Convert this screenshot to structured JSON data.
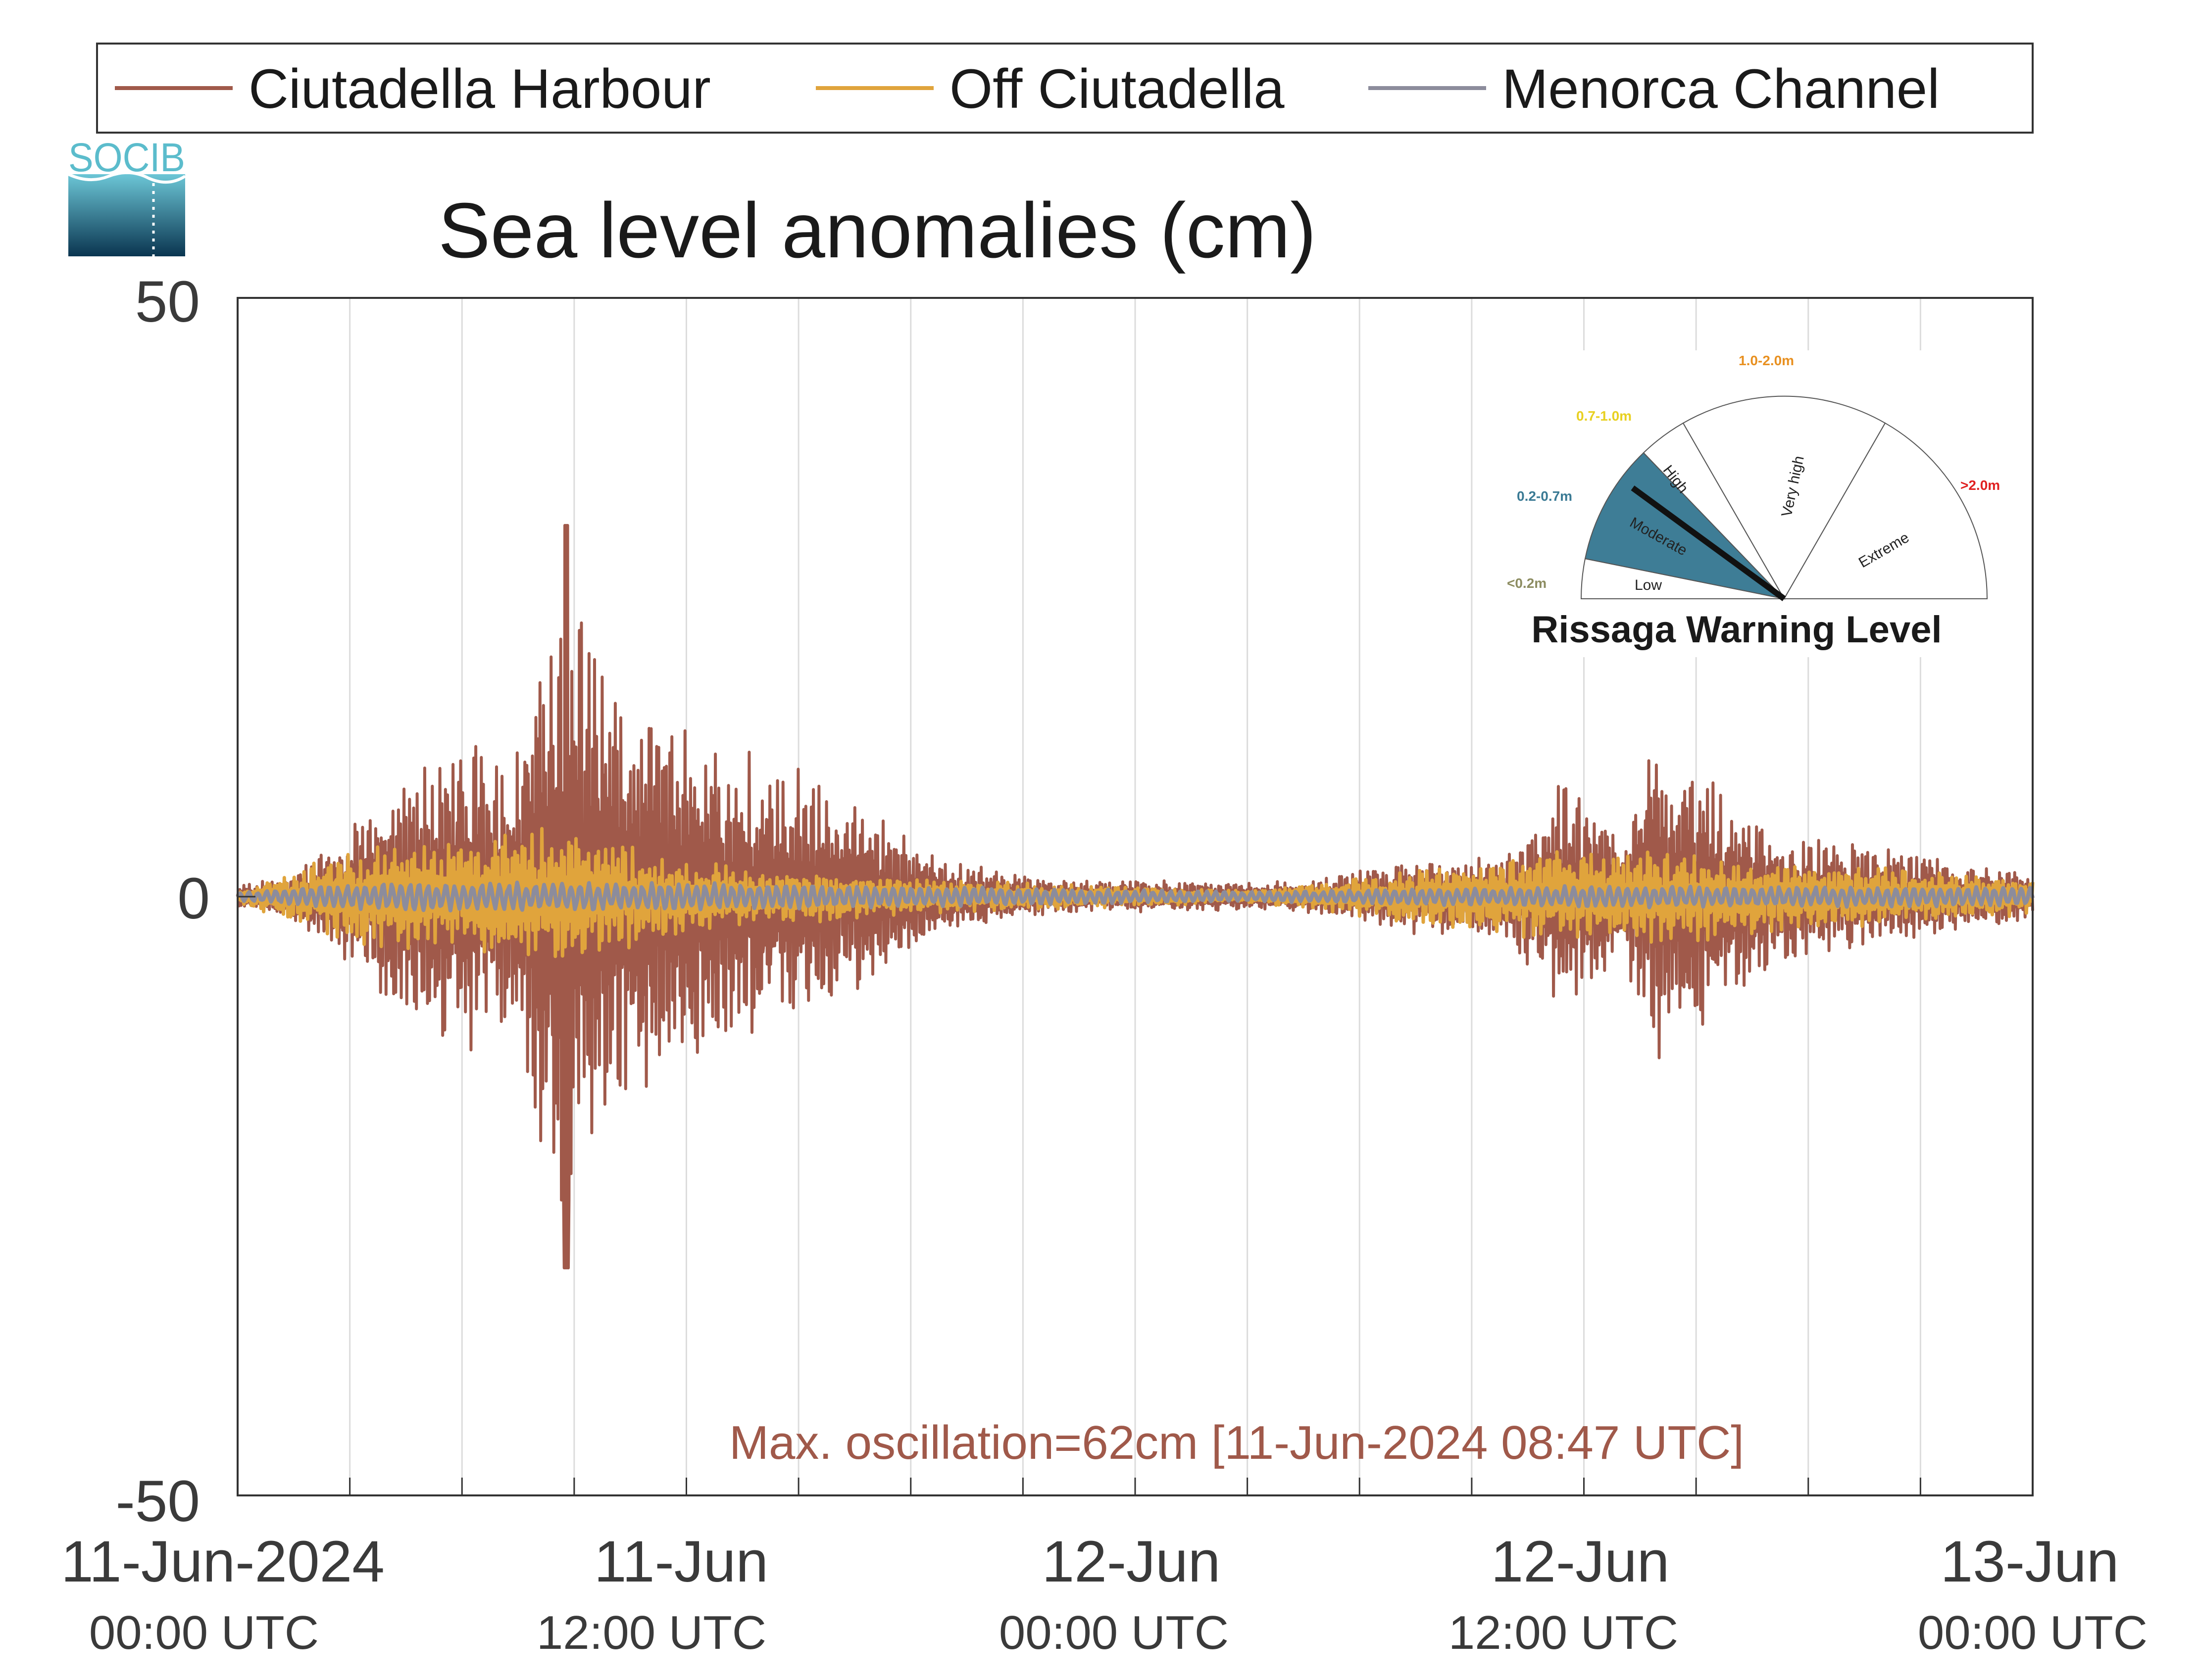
{
  "legend": {
    "items": [
      {
        "label": "Ciutadella Harbour",
        "color": "#a0594a"
      },
      {
        "label": "Off Ciutadella",
        "color": "#e0a43c"
      },
      {
        "label": "Menorca Channel",
        "color": "#8c8c9c"
      }
    ]
  },
  "logo": {
    "text": "SOCIB",
    "color": "#5bbccc"
  },
  "chart_data": {
    "type": "line",
    "title": "Sea level anomalies (cm)",
    "xlabel": "",
    "ylabel": "",
    "ylim": [
      -50,
      50
    ],
    "yticks": [
      -50,
      0,
      50
    ],
    "ytick_labels": [
      "-50",
      "0",
      "50"
    ],
    "xlim": [
      "2024-06-11T00:00",
      "2024-06-13T00:00"
    ],
    "x_grid_step_hours": 3,
    "xtick_labels": [
      {
        "date": "11-Jun-2024",
        "time": "00:00 UTC",
        "at": "2024-06-11T00:00"
      },
      {
        "date": "11-Jun",
        "time": "12:00 UTC",
        "at": "2024-06-11T12:00"
      },
      {
        "date": "12-Jun",
        "time": "00:00 UTC",
        "at": "2024-06-12T00:00"
      },
      {
        "date": "12-Jun",
        "time": "12:00 UTC",
        "at": "2024-06-12T12:00"
      },
      {
        "date": "13-Jun",
        "time": "00:00 UTC",
        "at": "2024-06-13T00:00"
      }
    ],
    "grid": "vertical",
    "legend_position": "top",
    "series": [
      {
        "name": "Ciutadella Harbour",
        "color": "#a0594a",
        "envelope": [
          {
            "t": "2024-06-11T00:00",
            "amp": 1
          },
          {
            "t": "2024-06-11T01:30",
            "amp": 2
          },
          {
            "t": "2024-06-11T03:00",
            "amp": 6
          },
          {
            "t": "2024-06-11T05:00",
            "amp": 12
          },
          {
            "t": "2024-06-11T07:30",
            "amp": 14
          },
          {
            "t": "2024-06-11T08:47",
            "amp": 31
          },
          {
            "t": "2024-06-11T10:00",
            "amp": 18
          },
          {
            "t": "2024-06-11T12:00",
            "amp": 15
          },
          {
            "t": "2024-06-11T15:00",
            "amp": 11
          },
          {
            "t": "2024-06-11T17:00",
            "amp": 7
          },
          {
            "t": "2024-06-11T19:00",
            "amp": 3
          },
          {
            "t": "2024-06-11T22:00",
            "amp": 1.5
          },
          {
            "t": "2024-06-12T03:00",
            "amp": 1.2
          },
          {
            "t": "2024-06-12T05:00",
            "amp": 1.5
          },
          {
            "t": "2024-06-12T07:00",
            "amp": 3
          },
          {
            "t": "2024-06-12T10:00",
            "amp": 4
          },
          {
            "t": "2024-06-12T11:30",
            "amp": 10
          },
          {
            "t": "2024-06-12T13:00",
            "amp": 6
          },
          {
            "t": "2024-06-12T14:00",
            "amp": 14
          },
          {
            "t": "2024-06-12T17:00",
            "amp": 6
          },
          {
            "t": "2024-06-12T20:00",
            "amp": 4
          },
          {
            "t": "2024-06-13T00:00",
            "amp": 2
          }
        ]
      },
      {
        "name": "Off Ciutadella",
        "color": "#e0a43c",
        "envelope": [
          {
            "t": "2024-06-11T00:00",
            "amp": 0.5
          },
          {
            "t": "2024-06-11T03:00",
            "amp": 4
          },
          {
            "t": "2024-06-11T08:47",
            "amp": 6
          },
          {
            "t": "2024-06-11T12:00",
            "amp": 3
          },
          {
            "t": "2024-06-11T18:00",
            "amp": 1.5
          },
          {
            "t": "2024-06-12T03:00",
            "amp": 0.5
          },
          {
            "t": "2024-06-12T11:30",
            "amp": 4
          },
          {
            "t": "2024-06-12T14:00",
            "amp": 4
          },
          {
            "t": "2024-06-13T00:00",
            "amp": 1.5
          }
        ]
      },
      {
        "name": "Menorca Channel",
        "color": "#8c8c9c",
        "envelope": [
          {
            "t": "2024-06-11T00:00",
            "amp": 0.5
          },
          {
            "t": "2024-06-11T04:00",
            "amp": 1.5
          },
          {
            "t": "2024-06-11T12:00",
            "amp": 1.5
          },
          {
            "t": "2024-06-12T03:00",
            "amp": 0.5
          },
          {
            "t": "2024-06-12T12:00",
            "amp": 1.2
          },
          {
            "t": "2024-06-13T00:00",
            "amp": 1
          }
        ]
      }
    ],
    "annotation": {
      "text": "Max. oscillation=62cm [11-Jun-2024 08:47 UTC]",
      "color": "#a0594a"
    }
  },
  "gauge": {
    "title": "Rissaga Warning Level",
    "current_level": "Moderate",
    "sectors": [
      {
        "name": "Low",
        "range": "<0.2m",
        "range_color": "#8c8c60"
      },
      {
        "name": "Moderate",
        "range": "0.2-0.7m",
        "range_color": "#3a7a94",
        "fill": "#3e7d96"
      },
      {
        "name": "High",
        "range": "0.7-1.0m",
        "range_color": "#e8d020"
      },
      {
        "name": "Very high",
        "range": "1.0-2.0m",
        "range_color": "#e89020"
      },
      {
        "name": "Extreme",
        "range": ">2.0m",
        "range_color": "#e02020"
      }
    ]
  }
}
